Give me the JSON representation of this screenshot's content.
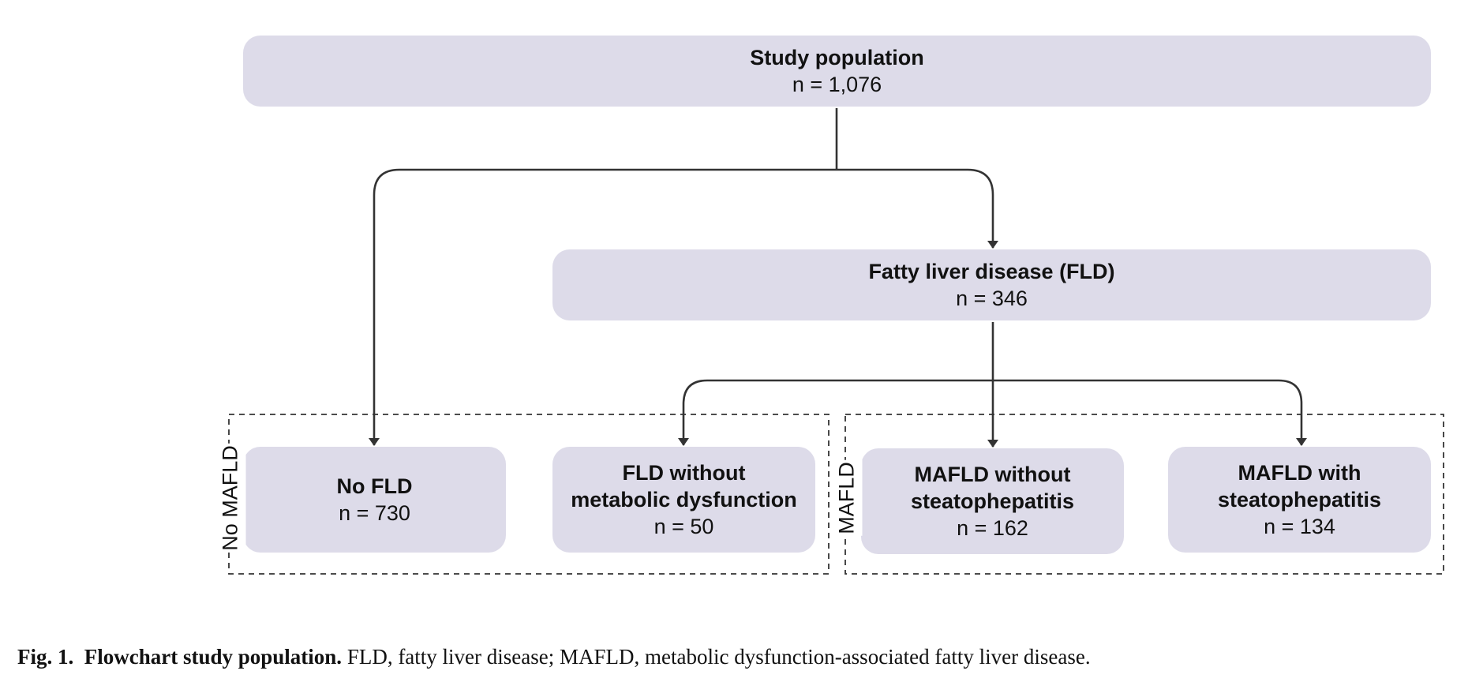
{
  "nodes": {
    "study": {
      "title": "Study population",
      "count": "n = 1,076"
    },
    "fld": {
      "title": "Fatty liver disease (FLD)",
      "count": "n = 346"
    },
    "no_fld": {
      "title": "No FLD",
      "count": "n = 730"
    },
    "fld_without_md": {
      "title_line1": "FLD without",
      "title_line2": "metabolic dysfunction",
      "count": "n = 50"
    },
    "mafld_without_sh": {
      "title_line1": "MAFLD without",
      "title_line2": "steatophepatitis",
      "count": "n = 162"
    },
    "mafld_with_sh": {
      "title_line1": "MAFLD with",
      "title_line2": "steatophepatitis",
      "count": "n = 134"
    }
  },
  "groups": {
    "no_mafld": "No MAFLD",
    "mafld": "MAFLD"
  },
  "caption": {
    "label": "Fig. 1.",
    "title": "Flowchart study population.",
    "text": "FLD, fatty liver disease; MAFLD, metabolic dysfunction-associated fatty liver disease."
  },
  "colors": {
    "box_fill": "#dddbe9",
    "line": "#333333",
    "text": "#111111"
  }
}
